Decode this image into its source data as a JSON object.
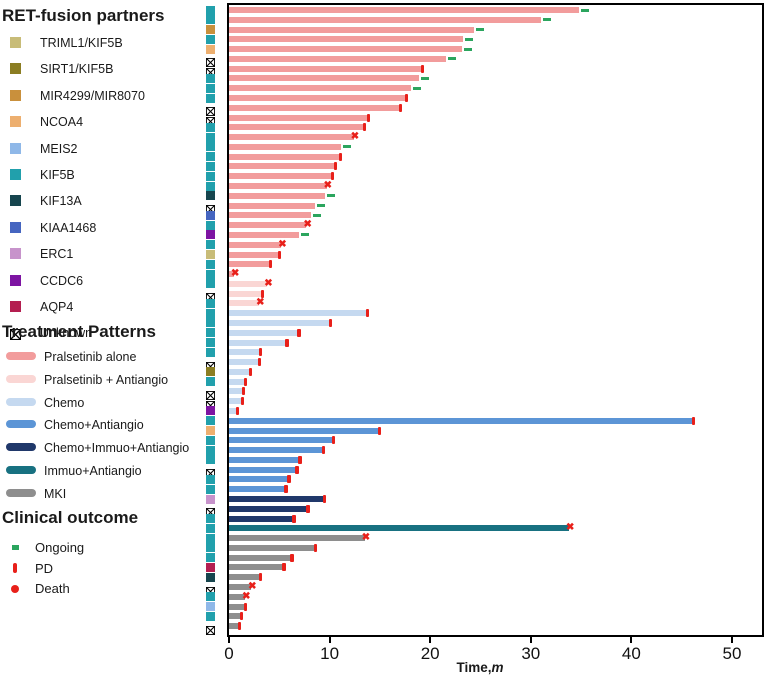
{
  "fusion_legend": {
    "title": "RET-fusion partners",
    "items": [
      {
        "label": "TRIML1/KIF5B",
        "color": "#c8bc78"
      },
      {
        "label": "SIRT1/KIF5B",
        "color": "#8b7d22"
      },
      {
        "label": "MIR4299/MIR8070",
        "color": "#c9903c"
      },
      {
        "label": "NCOA4",
        "color": "#edaf6f"
      },
      {
        "label": "MEIS2",
        "color": "#8fb8e8"
      },
      {
        "label": "KIF5B",
        "color": "#21a0ac"
      },
      {
        "label": "KIF13A",
        "color": "#16454e"
      },
      {
        "label": "KIAA1468",
        "color": "#4565c0"
      },
      {
        "label": "ERC1",
        "color": "#c793cb"
      },
      {
        "label": "CCDC6",
        "color": "#7d14a2"
      },
      {
        "label": "AQP4",
        "color": "#b41e50"
      },
      {
        "label": "Unknown",
        "color": "unknown"
      }
    ]
  },
  "treatment_legend": {
    "title": "Treatment Patterns",
    "items": [
      {
        "label": "Pralsetinib alone",
        "color": "#f29c9c"
      },
      {
        "label": "Pralsetinib + Antiangio",
        "color": "#fad6d4"
      },
      {
        "label": "Chemo",
        "color": "#c5d9f0"
      },
      {
        "label": "Chemo+Antiangio",
        "color": "#5c95d6"
      },
      {
        "label": "Chemo+Immuo+Antiangio",
        "color": "#20386a"
      },
      {
        "label": "Immuo+Antiangio",
        "color": "#187181"
      },
      {
        "label": "MKI",
        "color": "#8e8e8e"
      }
    ]
  },
  "outcome_legend": {
    "title": "Clinical outcome",
    "items": [
      {
        "label": "Ongoing",
        "marker": "ongoing",
        "color": "#2ba55e"
      },
      {
        "label": "PD",
        "marker": "pd",
        "color": "#e8201a"
      },
      {
        "label": "Death",
        "marker": "death",
        "color": "#e8201a"
      }
    ]
  },
  "axis": {
    "title_main": "Time,",
    "title_italic": "m"
  },
  "chart_data": {
    "type": "bar",
    "orientation": "horizontal_swimmer",
    "title": "",
    "xlabel": "Time,m",
    "xlim": [
      0,
      53.5
    ],
    "xticks": [
      0,
      10,
      20,
      30,
      40,
      50
    ],
    "grid": false,
    "legend_position": "left",
    "patient_fields": [
      "time_m",
      "treatment",
      "outcome",
      "ret_fusion_partner"
    ],
    "patients": [
      [
        34.8,
        "Pralsetinib alone",
        "ongoing",
        "KIF5B"
      ],
      [
        31.0,
        "Pralsetinib alone",
        "ongoing",
        "KIF5B"
      ],
      [
        24.4,
        "Pralsetinib alone",
        "ongoing",
        "MIR4299/MIR8070"
      ],
      [
        23.3,
        "Pralsetinib alone",
        "ongoing",
        "KIF5B"
      ],
      [
        23.2,
        "Pralsetinib alone",
        "ongoing",
        "NCOA4"
      ],
      [
        21.6,
        "Pralsetinib alone",
        "ongoing",
        "Unknown"
      ],
      [
        19.2,
        "Pralsetinib alone",
        "pd",
        "Unknown"
      ],
      [
        18.9,
        "Pralsetinib alone",
        "ongoing",
        "KIF5B"
      ],
      [
        18.1,
        "Pralsetinib alone",
        "ongoing",
        "KIF5B"
      ],
      [
        17.6,
        "Pralsetinib alone",
        "pd",
        "KIF5B"
      ],
      [
        17.0,
        "Pralsetinib alone",
        "pd",
        "Unknown"
      ],
      [
        13.8,
        "Pralsetinib alone",
        "pd",
        "Unknown"
      ],
      [
        13.4,
        "Pralsetinib alone",
        "pd",
        "KIF5B"
      ],
      [
        12.4,
        "Pralsetinib alone",
        "death",
        "KIF5B"
      ],
      [
        11.1,
        "Pralsetinib alone",
        "ongoing",
        "KIF5B"
      ],
      [
        11.0,
        "Pralsetinib alone",
        "pd",
        "KIF5B"
      ],
      [
        10.5,
        "Pralsetinib alone",
        "pd",
        "KIF5B"
      ],
      [
        10.2,
        "Pralsetinib alone",
        "pd",
        "KIF5B"
      ],
      [
        9.7,
        "Pralsetinib alone",
        "death",
        "KIF5B"
      ],
      [
        9.5,
        "Pralsetinib alone",
        "ongoing",
        "KIF13A"
      ],
      [
        8.5,
        "Pralsetinib alone",
        "ongoing",
        "Unknown"
      ],
      [
        8.2,
        "Pralsetinib alone",
        "ongoing",
        "KIAA1468"
      ],
      [
        7.7,
        "Pralsetinib alone",
        "death",
        "KIF5B"
      ],
      [
        7.0,
        "Pralsetinib alone",
        "ongoing",
        "CCDC6"
      ],
      [
        5.2,
        "Pralsetinib alone",
        "death",
        "KIF5B"
      ],
      [
        5.0,
        "Pralsetinib alone",
        "pd",
        "TRIML1/KIF5B"
      ],
      [
        4.1,
        "Pralsetinib alone",
        "pd",
        "KIF5B"
      ],
      [
        0.5,
        "Pralsetinib alone",
        "death",
        "KIF5B"
      ],
      [
        3.8,
        "Pralsetinib + Antiangio",
        "death",
        "KIF5B"
      ],
      [
        3.3,
        "Pralsetinib + Antiangio",
        "pd",
        "Unknown"
      ],
      [
        3.0,
        "Pralsetinib + Antiangio",
        "death",
        "KIF5B"
      ],
      [
        13.7,
        "Chemo",
        "pd",
        "KIF5B"
      ],
      [
        10.0,
        "Chemo",
        "pd",
        "KIF5B"
      ],
      [
        6.9,
        "Chemo",
        "pd",
        "KIF5B"
      ],
      [
        5.7,
        "Chemo",
        "pd",
        "KIF5B"
      ],
      [
        3.1,
        "Chemo",
        "pd",
        "KIF5B"
      ],
      [
        3.0,
        "Chemo",
        "pd",
        "Unknown"
      ],
      [
        2.1,
        "Chemo",
        "pd",
        "SIRT1/KIF5B"
      ],
      [
        1.6,
        "Chemo",
        "pd",
        "KIF5B"
      ],
      [
        1.4,
        "Chemo",
        "pd",
        "Unknown"
      ],
      [
        1.3,
        "Chemo",
        "pd",
        "Unknown"
      ],
      [
        0.8,
        "Chemo",
        "pd",
        "CCDC6"
      ],
      [
        46.1,
        "Chemo+Antiangio",
        "pd",
        "KIF5B"
      ],
      [
        14.9,
        "Chemo+Antiangio",
        "pd",
        "NCOA4"
      ],
      [
        10.3,
        "Chemo+Antiangio",
        "pd",
        "KIF5B"
      ],
      [
        9.3,
        "Chemo+Antiangio",
        "pd",
        "KIF5B"
      ],
      [
        7.0,
        "Chemo+Antiangio",
        "pd",
        "KIF5B"
      ],
      [
        6.7,
        "Chemo+Antiangio",
        "pd",
        "Unknown"
      ],
      [
        5.9,
        "Chemo+Antiangio",
        "pd",
        "KIF5B"
      ],
      [
        5.6,
        "Chemo+Antiangio",
        "pd",
        "KIF5B"
      ],
      [
        9.4,
        "Chemo+Immuo+Antiangio",
        "pd",
        "ERC1"
      ],
      [
        7.8,
        "Chemo+Immuo+Antiangio",
        "pd",
        "Unknown"
      ],
      [
        6.4,
        "Chemo+Immuo+Antiangio",
        "pd",
        "KIF5B"
      ],
      [
        33.8,
        "Immuo+Antiangio",
        "death",
        "KIF5B"
      ],
      [
        13.5,
        "MKI",
        "death",
        "KIF5B"
      ],
      [
        8.5,
        "MKI",
        "pd",
        "KIF5B"
      ],
      [
        6.2,
        "MKI",
        "pd",
        "KIF5B"
      ],
      [
        5.4,
        "MKI",
        "pd",
        "AQP4"
      ],
      [
        3.1,
        "MKI",
        "pd",
        "KIF13A"
      ],
      [
        2.2,
        "MKI",
        "death",
        "Unknown"
      ],
      [
        1.6,
        "MKI",
        "death",
        "KIF5B"
      ],
      [
        1.6,
        "MKI",
        "pd",
        "MEIS2"
      ],
      [
        1.2,
        "MKI",
        "pd",
        "KIF5B"
      ],
      [
        1.0,
        "MKI",
        "pd",
        "Unknown"
      ]
    ]
  }
}
